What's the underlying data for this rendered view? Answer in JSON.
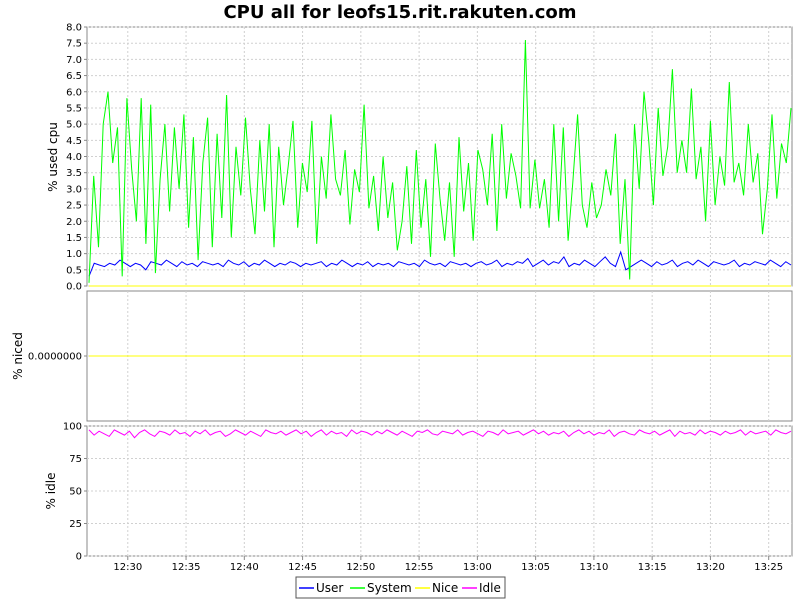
{
  "chart_data": {
    "type": "line",
    "title": "CPU all for leofs15.rit.rakuten.com",
    "x_tick_labels": [
      "12:30",
      "12:35",
      "12:40",
      "12:45",
      "12:50",
      "12:55",
      "13:00",
      "13:05",
      "13:10",
      "13:15",
      "13:20",
      "13:25"
    ],
    "x_range": [
      "12:26:30",
      "13:27:00"
    ],
    "grid": true,
    "legend_placement": "bottom-center",
    "legend": [
      {
        "name": "User",
        "color": "#0000ff"
      },
      {
        "name": "System",
        "color": "#00ff00"
      },
      {
        "name": "Nice",
        "color": "#ffff00"
      },
      {
        "name": "Idle",
        "color": "#ff00ff"
      }
    ],
    "panels": [
      {
        "ylabel": "% used cpu",
        "ylim": [
          0,
          8
        ],
        "yticks": [
          "0.0",
          "0.5",
          "1.0",
          "1.5",
          "2.0",
          "2.5",
          "3.0",
          "3.5",
          "4.0",
          "4.5",
          "5.0",
          "5.5",
          "6.0",
          "6.5",
          "7.0",
          "7.5",
          "8.0"
        ],
        "series": [
          {
            "name": "User",
            "color": "#0000ff",
            "values": [
              0.3,
              0.7,
              0.65,
              0.6,
              0.7,
              0.65,
              0.8,
              0.7,
              0.6,
              0.7,
              0.65,
              0.5,
              0.75,
              0.7,
              0.65,
              0.8,
              0.7,
              0.6,
              0.75,
              0.65,
              0.7,
              0.6,
              0.75,
              0.7,
              0.65,
              0.7,
              0.6,
              0.8,
              0.7,
              0.65,
              0.75,
              0.6,
              0.7,
              0.65,
              0.8,
              0.7,
              0.6,
              0.7,
              0.65,
              0.75,
              0.7,
              0.6,
              0.7,
              0.65,
              0.7,
              0.75,
              0.6,
              0.7,
              0.65,
              0.8,
              0.7,
              0.6,
              0.7,
              0.65,
              0.75,
              0.6,
              0.7,
              0.65,
              0.7,
              0.6,
              0.75,
              0.7,
              0.65,
              0.7,
              0.6,
              0.8,
              0.7,
              0.65,
              0.7,
              0.6,
              0.75,
              0.7,
              0.65,
              0.7,
              0.6,
              0.7,
              0.75,
              0.65,
              0.7,
              0.8,
              0.6,
              0.7,
              0.65,
              0.75,
              0.7,
              0.85,
              0.6,
              0.7,
              0.8,
              0.65,
              0.75,
              0.7,
              0.9,
              0.6,
              0.7,
              0.65,
              0.8,
              0.7,
              0.6,
              0.75,
              0.9,
              0.7,
              0.6,
              1.05,
              0.5,
              0.6,
              0.7,
              0.8,
              0.7,
              0.6,
              0.75,
              0.65,
              0.7,
              0.8,
              0.6,
              0.7,
              0.75,
              0.65,
              0.8,
              0.7,
              0.6,
              0.75,
              0.7,
              0.65,
              0.7,
              0.8,
              0.6,
              0.7,
              0.65,
              0.75,
              0.7,
              0.65,
              0.8,
              0.7,
              0.6,
              0.75,
              0.65
            ]
          },
          {
            "name": "System",
            "color": "#00ff00",
            "values": [
              0.1,
              3.4,
              1.2,
              5.0,
              6.0,
              3.8,
              4.9,
              0.3,
              5.8,
              3.6,
              2.0,
              5.8,
              1.3,
              5.6,
              0.4,
              3.3,
              5.0,
              2.3,
              4.9,
              3.0,
              5.3,
              1.8,
              4.6,
              0.8,
              3.8,
              5.2,
              1.2,
              4.7,
              2.1,
              5.9,
              1.5,
              4.3,
              2.8,
              5.2,
              3.0,
              1.6,
              4.5,
              2.3,
              5.0,
              1.2,
              4.3,
              2.5,
              3.7,
              5.1,
              1.8,
              3.8,
              2.9,
              5.1,
              1.3,
              4.0,
              2.7,
              5.3,
              3.3,
              2.8,
              4.2,
              1.9,
              3.6,
              2.9,
              5.6,
              2.4,
              3.4,
              1.7,
              4.0,
              2.1,
              3.2,
              1.1,
              2.0,
              3.7,
              1.3,
              4.2,
              1.8,
              3.3,
              0.9,
              4.4,
              2.7,
              1.4,
              3.2,
              0.9,
              4.6,
              2.3,
              3.8,
              1.4,
              4.2,
              3.6,
              2.5,
              4.7,
              1.7,
              5.0,
              2.7,
              4.1,
              3.4,
              2.4,
              7.6,
              2.4,
              3.9,
              2.4,
              3.3,
              1.8,
              5.0,
              2.0,
              4.9,
              1.4,
              3.2,
              5.3,
              2.5,
              1.8,
              3.2,
              2.1,
              2.5,
              3.6,
              2.8,
              4.7,
              1.3,
              3.3,
              0.2,
              5.0,
              3.0,
              6.0,
              4.5,
              2.5,
              5.5,
              3.4,
              4.3,
              6.7,
              3.5,
              4.5,
              3.5,
              6.1,
              3.3,
              4.3,
              2.0,
              5.1,
              2.5,
              4.0,
              3.1,
              6.3,
              3.2,
              3.8,
              2.8,
              5.0,
              3.2,
              4.1,
              1.6,
              3.0,
              5.3,
              2.7,
              4.4,
              3.8,
              5.5
            ]
          },
          {
            "name": "Nice",
            "color": "#ffff00",
            "values": [
              0,
              0
            ]
          }
        ]
      },
      {
        "ylabel": "% niced",
        "yticks": [
          "0.0000000"
        ],
        "series": [
          {
            "name": "Nice",
            "color": "#ffff00",
            "values": [
              0,
              0
            ]
          }
        ]
      },
      {
        "ylabel": "% idle",
        "ylim": [
          0,
          100
        ],
        "yticks": [
          "0",
          "25",
          "50",
          "75",
          "100"
        ],
        "series": [
          {
            "name": "Idle",
            "color": "#ff00ff",
            "values": [
              97,
              93,
              96,
              94,
              92,
              97,
              95,
              93,
              96,
              91,
              95,
              97,
              94,
              92,
              96,
              95,
              93,
              97,
              94,
              95,
              92,
              96,
              94,
              97,
              93,
              95,
              96,
              92,
              94,
              97,
              95,
              93,
              96,
              94,
              92,
              97,
              95,
              94,
              96,
              93,
              95,
              97,
              94,
              96,
              92,
              95,
              97,
              93,
              96,
              94,
              95,
              92,
              97,
              94,
              96,
              95,
              93,
              96,
              94,
              97,
              95,
              93,
              96,
              94,
              92,
              96,
              95,
              97,
              94,
              93,
              96,
              95,
              94,
              97,
              93,
              95,
              96,
              94,
              92,
              96,
              95,
              93,
              97,
              94,
              95,
              96,
              93,
              95,
              97,
              94,
              96,
              93,
              95,
              94,
              96,
              92,
              95,
              97,
              94,
              96,
              93,
              95,
              94,
              97,
              92,
              95,
              96,
              94,
              93,
              97,
              95,
              94,
              96,
              93,
              95,
              97,
              92,
              96,
              94,
              95,
              93,
              97,
              94,
              96,
              95,
              93,
              96,
              94,
              95,
              97,
              93,
              96,
              94,
              95,
              96,
              93,
              97,
              95,
              94,
              96
            ]
          }
        ]
      }
    ]
  }
}
